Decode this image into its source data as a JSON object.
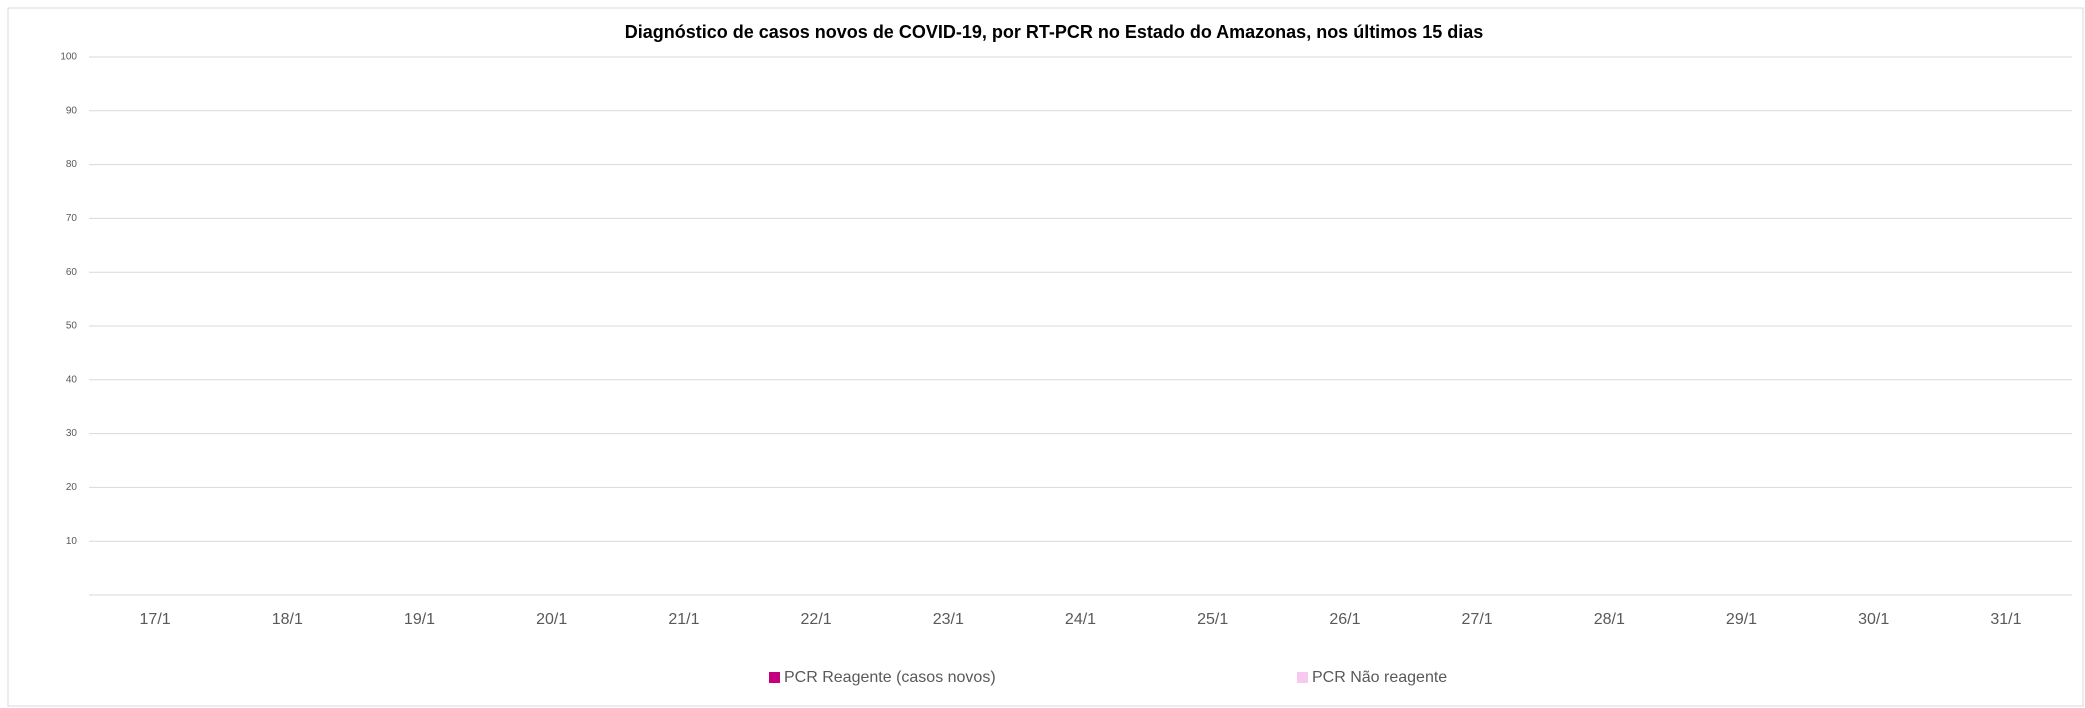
{
  "chart_data": {
    "type": "stacked_bar",
    "title": "Diagnóstico de casos novos de COVID-19, por RT-PCR no Estado do Amazonas, nos últimos 15 dias",
    "categories": [
      "17/1",
      "18/1",
      "19/1",
      "20/1",
      "21/1",
      "22/1",
      "23/1",
      "24/1",
      "25/1",
      "26/1",
      "27/1",
      "28/1",
      "29/1",
      "30/1",
      "31/1"
    ],
    "series": [
      {
        "name": "PCR Reagente (casos novos)",
        "color": "#c4007f",
        "values": [
          0,
          0,
          0,
          0,
          0,
          0,
          0,
          0,
          0,
          0,
          0,
          0,
          0,
          0,
          0
        ]
      },
      {
        "name": "PCR Não reagente",
        "color": "#f7c9ef",
        "values": [
          0,
          0,
          0,
          0,
          0,
          0,
          0,
          0,
          0,
          0,
          0,
          0,
          0,
          0,
          0
        ]
      }
    ],
    "ylim": [
      0,
      100
    ],
    "yticks": [
      10,
      20,
      30,
      40,
      50,
      60,
      70,
      80,
      90,
      100
    ],
    "grid": true,
    "legend": "bottom"
  }
}
